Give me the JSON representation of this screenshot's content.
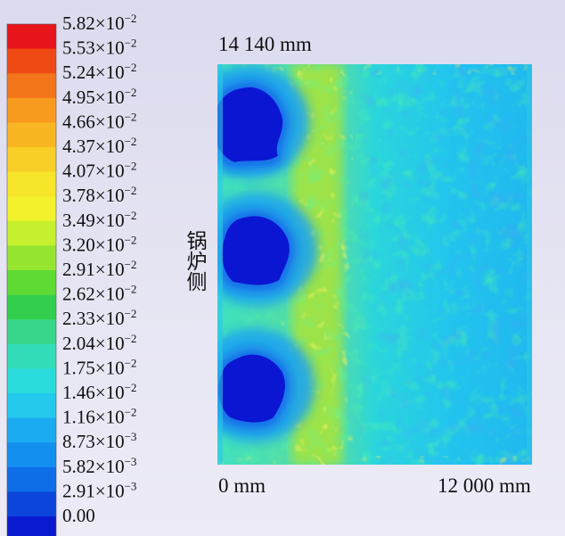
{
  "chart_data": {
    "type": "heatmap",
    "top_label": "14 140 mm",
    "x_min_label": "0 mm",
    "x_max_label": "12 000 mm",
    "side_label": "锅炉侧",
    "colorbar": {
      "levels": [
        {
          "mantissa": "5.82",
          "exponent": "−2",
          "value": 0.0582,
          "color": "#e8141c"
        },
        {
          "mantissa": "5.53",
          "exponent": "−2",
          "value": 0.0553,
          "color": "#ef4a13"
        },
        {
          "mantissa": "5.24",
          "exponent": "−2",
          "value": 0.0524,
          "color": "#f3751a"
        },
        {
          "mantissa": "4.95",
          "exponent": "−2",
          "value": 0.0495,
          "color": "#f79a1e"
        },
        {
          "mantissa": "4.66",
          "exponent": "−2",
          "value": 0.0466,
          "color": "#f8b623"
        },
        {
          "mantissa": "4.37",
          "exponent": "−2",
          "value": 0.0437,
          "color": "#f8cf26"
        },
        {
          "mantissa": "4.07",
          "exponent": "−2",
          "value": 0.0407,
          "color": "#f7e52a"
        },
        {
          "mantissa": "3.78",
          "exponent": "−2",
          "value": 0.0378,
          "color": "#f1f22c"
        },
        {
          "mantissa": "3.49",
          "exponent": "−2",
          "value": 0.0349,
          "color": "#c6ef2d"
        },
        {
          "mantissa": "3.20",
          "exponent": "−2",
          "value": 0.032,
          "color": "#96e530"
        },
        {
          "mantissa": "2.91",
          "exponent": "−2",
          "value": 0.0291,
          "color": "#5fda35"
        },
        {
          "mantissa": "2.62",
          "exponent": "−2",
          "value": 0.0262,
          "color": "#33cf4c"
        },
        {
          "mantissa": "2.33",
          "exponent": "−2",
          "value": 0.0233,
          "color": "#37d68a"
        },
        {
          "mantissa": "2.04",
          "exponent": "−2",
          "value": 0.0204,
          "color": "#33dcb8"
        },
        {
          "mantissa": "1.75",
          "exponent": "−2",
          "value": 0.0175,
          "color": "#2adbdc"
        },
        {
          "mantissa": "1.46",
          "exponent": "−2",
          "value": 0.0146,
          "color": "#23c9ec"
        },
        {
          "mantissa": "1.16",
          "exponent": "−2",
          "value": 0.0116,
          "color": "#1aabf0"
        },
        {
          "mantissa": "8.73",
          "exponent": "−3",
          "value": 0.00873,
          "color": "#138ff0"
        },
        {
          "mantissa": "5.82",
          "exponent": "−3",
          "value": 0.00582,
          "color": "#0e6ee8"
        },
        {
          "mantissa": "2.91",
          "exponent": "−3",
          "value": 0.00291,
          "color": "#0b45db"
        },
        {
          "mantissa": "0.00",
          "exponent": "",
          "value": 0.0,
          "color": "#0a1ad0"
        }
      ],
      "multiplier": "×10"
    },
    "x_range_mm": [
      0,
      12000
    ],
    "y_extent_mm": 14140,
    "features": [
      {
        "kind": "low",
        "label": "low-zone-top",
        "x_mm": 1200,
        "y_mm": 12100,
        "value": 0.0
      },
      {
        "kind": "low",
        "label": "low-zone-middle",
        "x_mm": 1500,
        "y_mm": 7600,
        "value": 0.0
      },
      {
        "kind": "low",
        "label": "low-zone-bottom",
        "x_mm": 1400,
        "y_mm": 2800,
        "value": 0.0
      },
      {
        "kind": "band",
        "label": "high-band",
        "x_mm": 3800,
        "value": 0.033
      }
    ]
  }
}
